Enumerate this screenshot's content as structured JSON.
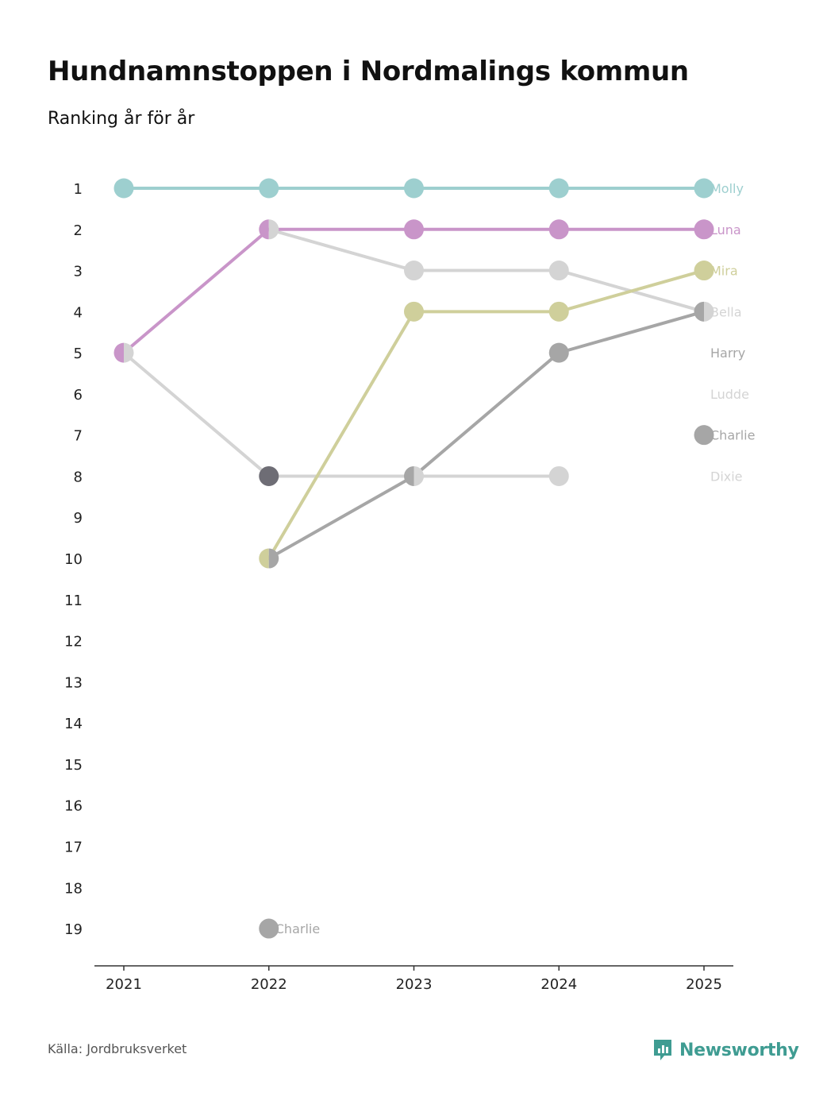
{
  "header": {
    "title": "Hundnamnstoppen i Nordmalings kommun",
    "subtitle": "Ranking år för år"
  },
  "footer": {
    "source": "Källa: Jordbruksverket",
    "brand": "Newsworthy",
    "brand_icon": "newsworthy-logo-icon",
    "brand_color": "#3f9c92"
  },
  "chart_data": {
    "type": "line",
    "title": "Hundnamnstoppen i Nordmalings kommun",
    "subtitle": "Ranking år för år",
    "xlabel": "",
    "ylabel": "",
    "categories": [
      "2021",
      "2022",
      "2023",
      "2024",
      "2025"
    ],
    "y_ticks": [
      "1",
      "2",
      "3",
      "4",
      "5",
      "6",
      "7",
      "8",
      "9",
      "10",
      "11",
      "12",
      "13",
      "14",
      "15",
      "16",
      "17",
      "18",
      "19"
    ],
    "ylim": [
      1,
      19
    ],
    "y_inverted": true,
    "grid": false,
    "legend": "direct labels at right",
    "series": [
      {
        "name": "Dixie",
        "color": "#d4d4d4",
        "values": [
          null,
          8,
          8,
          8,
          null
        ]
      },
      {
        "name": "Ludde",
        "color": "#d4d4d4",
        "values": [
          5,
          8,
          null,
          null,
          null
        ]
      },
      {
        "name": "Bella",
        "color": "#d4d4d4",
        "values": [
          null,
          2,
          3,
          3,
          4
        ]
      },
      {
        "name": "Charlie",
        "color": "#a6a6a6",
        "values": [
          null,
          19,
          null,
          null,
          7
        ],
        "point_labels": {
          "1": "Charlie"
        }
      },
      {
        "name": "Harry",
        "color": "#a6a6a6",
        "values": [
          null,
          10,
          8,
          5,
          4
        ]
      },
      {
        "name": "Mira",
        "color": "#cfcf9b",
        "values": [
          null,
          10,
          4,
          4,
          3
        ]
      },
      {
        "name": "Luna",
        "color": "#c995c9",
        "values": [
          5,
          2,
          2,
          2,
          2
        ]
      },
      {
        "name": "Molly",
        "color": "#9dcfcf",
        "values": [
          1,
          1,
          1,
          1,
          1
        ]
      }
    ],
    "end_labels": [
      {
        "name": "Molly",
        "rank": 1,
        "color": "#9dcfcf"
      },
      {
        "name": "Luna",
        "rank": 2,
        "color": "#c995c9"
      },
      {
        "name": "Mira",
        "rank": 3,
        "color": "#cfcf9b"
      },
      {
        "name": "Bella",
        "rank": 4,
        "color": "#d4d4d4"
      },
      {
        "name": "Harry",
        "rank": 5,
        "color": "#a6a6a6"
      },
      {
        "name": "Ludde",
        "rank": 6,
        "color": "#d4d4d4"
      },
      {
        "name": "Charlie",
        "rank": 7,
        "color": "#a6a6a6"
      },
      {
        "name": "Dixie",
        "rank": 8,
        "color": "#d4d4d4"
      }
    ],
    "overlap_color": "#6e6d75"
  }
}
